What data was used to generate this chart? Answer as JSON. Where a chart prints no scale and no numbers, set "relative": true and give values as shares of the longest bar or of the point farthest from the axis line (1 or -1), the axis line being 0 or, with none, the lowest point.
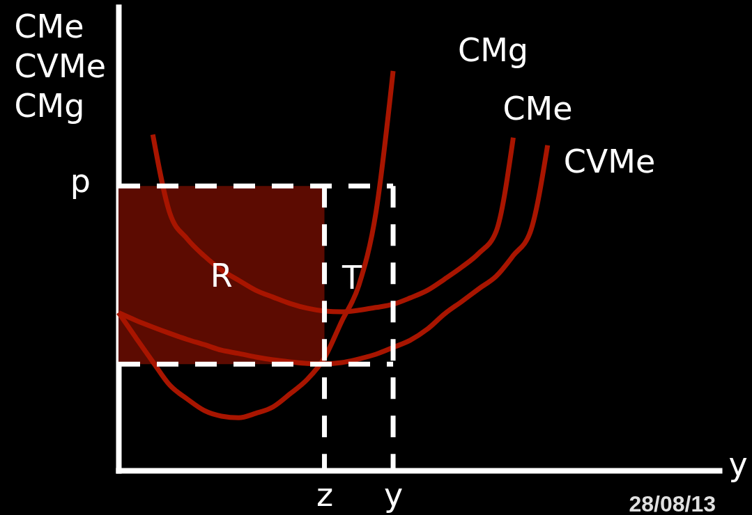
{
  "chart_data": {
    "type": "line",
    "relative": true,
    "ylabel": "CMe\nCVMe\nCMg",
    "xlabel": "y",
    "tick_labels": "x",
    "grid": false,
    "legend": false,
    "marker": "none",
    "categories": [
      null,
      null,
      null,
      null,
      null,
      null,
      null,
      null,
      null,
      null,
      null,
      null,
      "z",
      null,
      null,
      null,
      "y",
      null,
      null,
      null,
      null,
      null,
      null,
      null,
      null,
      null,
      null,
      null,
      null,
      null,
      null,
      null,
      null,
      null,
      null,
      null
    ],
    "series": [
      {
        "name": "CMg",
        "color": "#a81500",
        "values": [
          0.395,
          0.333,
          0.272,
          0.213,
          0.179,
          0.15,
          0.136,
          0.132,
          0.143,
          0.159,
          0.192,
          0.228,
          0.282,
          0.373,
          0.463,
          0.646,
          1.0,
          null,
          null,
          null,
          null,
          null,
          null,
          null,
          null,
          null,
          null,
          null,
          null,
          null,
          null,
          null,
          null,
          null,
          null,
          null
        ]
      },
      {
        "name": "CMe",
        "color": "#a81500",
        "values": [
          null,
          null,
          0.841,
          0.643,
          0.58,
          0.537,
          0.502,
          0.476,
          0.451,
          0.434,
          0.418,
          0.406,
          0.399,
          0.397,
          0.401,
          0.408,
          0.416,
          0.432,
          0.451,
          0.479,
          0.509,
          0.544,
          0.598,
          0.833,
          null,
          null,
          null,
          null,
          null,
          null,
          null,
          null,
          null,
          null,
          null,
          null
        ]
      },
      {
        "name": "CVMe",
        "color": "#a81500",
        "values": [
          0.395,
          0.376,
          0.359,
          0.343,
          0.328,
          0.315,
          0.301,
          0.293,
          0.284,
          0.277,
          0.272,
          0.268,
          0.267,
          0.27,
          0.279,
          0.291,
          0.308,
          0.326,
          0.354,
          0.392,
          0.423,
          0.455,
          0.486,
          0.538,
          0.598,
          0.814,
          null,
          null,
          null,
          null,
          null,
          null,
          null,
          null,
          null,
          null
        ]
      }
    ],
    "bands": [
      {
        "axis": "y",
        "from": 0.266,
        "to": 0.712,
        "label": "R",
        "color": "#5c0b01"
      }
    ],
    "ref_lines": [
      {
        "axis": "y",
        "value": 0.712,
        "label": "p",
        "color": "#ffffff",
        "line_style": "dashed"
      },
      {
        "axis": "y",
        "value": 0.266,
        "color": "#ffffff",
        "line_style": "dashed"
      },
      {
        "axis": "x",
        "value": "z",
        "color": "#ffffff",
        "line_style": "dashed"
      },
      {
        "axis": "x",
        "value": "y",
        "color": "#ffffff",
        "line_style": "dashed"
      }
    ],
    "annotations": [
      "T",
      "28/08/13"
    ]
  }
}
